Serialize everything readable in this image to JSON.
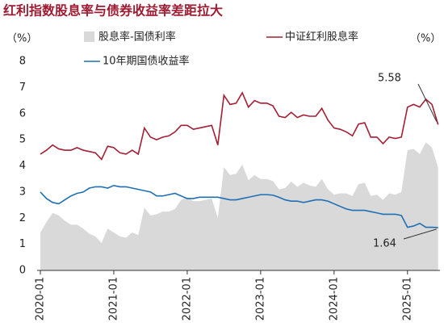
{
  "chart_data": {
    "type": "line",
    "title": "红利指数股息率与债券收益率差距拉大",
    "y_label": "（%）",
    "y2_label": "（%）",
    "categories": [
      "2020-01",
      null,
      null,
      null,
      null,
      null,
      null,
      null,
      null,
      null,
      null,
      null,
      "2021-01",
      null,
      null,
      null,
      null,
      null,
      null,
      null,
      null,
      null,
      null,
      null,
      "2022-01",
      null,
      null,
      null,
      null,
      null,
      null,
      null,
      null,
      null,
      null,
      null,
      "2023-01",
      null,
      null,
      null,
      null,
      null,
      null,
      null,
      null,
      null,
      null,
      null,
      "2024-01",
      null,
      null,
      null,
      null,
      null,
      null,
      null,
      null,
      null,
      null,
      null,
      "2025-01",
      null,
      null,
      null,
      null,
      null
    ],
    "ylim": [
      0,
      8
    ],
    "yticks": [
      0,
      1,
      2,
      3,
      4,
      5,
      6,
      7,
      8
    ],
    "series": [
      {
        "name": "股息率-国债利率",
        "color": "#d9d9d9",
        "area": true,
        "values": [
          1.45,
          1.85,
          2.2,
          2.1,
          1.9,
          1.75,
          1.75,
          1.6,
          1.4,
          1.3,
          1.05,
          1.6,
          1.45,
          1.3,
          1.25,
          1.45,
          1.35,
          2.4,
          2.1,
          2.15,
          2.25,
          2.25,
          2.35,
          2.7,
          2.8,
          2.65,
          2.65,
          2.7,
          2.75,
          2.0,
          3.95,
          3.65,
          3.7,
          4.05,
          3.45,
          3.65,
          3.5,
          3.5,
          3.42,
          3.1,
          3.15,
          3.4,
          3.2,
          3.35,
          3.25,
          3.2,
          3.5,
          3.1,
          2.9,
          2.95,
          2.95,
          2.85,
          3.3,
          3.35,
          2.85,
          2.9,
          2.7,
          2.95,
          2.9,
          3.0,
          4.6,
          4.65,
          4.45,
          4.9,
          4.7,
          3.94
        ]
      },
      {
        "name": "中证红利股息率",
        "color": "#a31f34",
        "values": [
          4.45,
          4.6,
          4.8,
          4.65,
          4.6,
          4.6,
          4.7,
          4.6,
          4.55,
          4.5,
          4.25,
          4.75,
          4.7,
          4.5,
          4.45,
          4.6,
          4.45,
          5.45,
          5.1,
          5.0,
          5.1,
          5.15,
          5.3,
          5.55,
          5.55,
          5.4,
          5.45,
          5.5,
          5.55,
          4.8,
          6.7,
          6.35,
          6.4,
          6.8,
          6.25,
          6.5,
          6.4,
          6.4,
          6.3,
          5.9,
          5.85,
          6.05,
          5.85,
          5.95,
          5.9,
          5.9,
          6.2,
          5.75,
          5.45,
          5.4,
          5.3,
          5.15,
          5.6,
          5.65,
          5.1,
          5.1,
          4.85,
          5.1,
          5.05,
          5.1,
          6.25,
          6.35,
          6.25,
          6.55,
          6.35,
          5.58
        ]
      },
      {
        "name": "10年期国债收益率",
        "color": "#1f6fb5",
        "values": [
          3.0,
          2.75,
          2.6,
          2.55,
          2.7,
          2.85,
          2.95,
          3.0,
          3.15,
          3.2,
          3.2,
          3.15,
          3.25,
          3.2,
          3.2,
          3.15,
          3.1,
          3.05,
          3.0,
          2.85,
          2.85,
          2.9,
          2.95,
          2.85,
          2.75,
          2.75,
          2.8,
          2.8,
          2.8,
          2.8,
          2.75,
          2.7,
          2.7,
          2.75,
          2.8,
          2.85,
          2.9,
          2.9,
          2.88,
          2.8,
          2.7,
          2.65,
          2.65,
          2.6,
          2.65,
          2.7,
          2.7,
          2.65,
          2.55,
          2.45,
          2.35,
          2.3,
          2.3,
          2.3,
          2.25,
          2.2,
          2.15,
          2.15,
          2.15,
          2.1,
          1.65,
          1.7,
          1.8,
          1.65,
          1.65,
          1.64
        ]
      }
    ],
    "annotations": [
      "5.58",
      "1.64"
    ]
  }
}
